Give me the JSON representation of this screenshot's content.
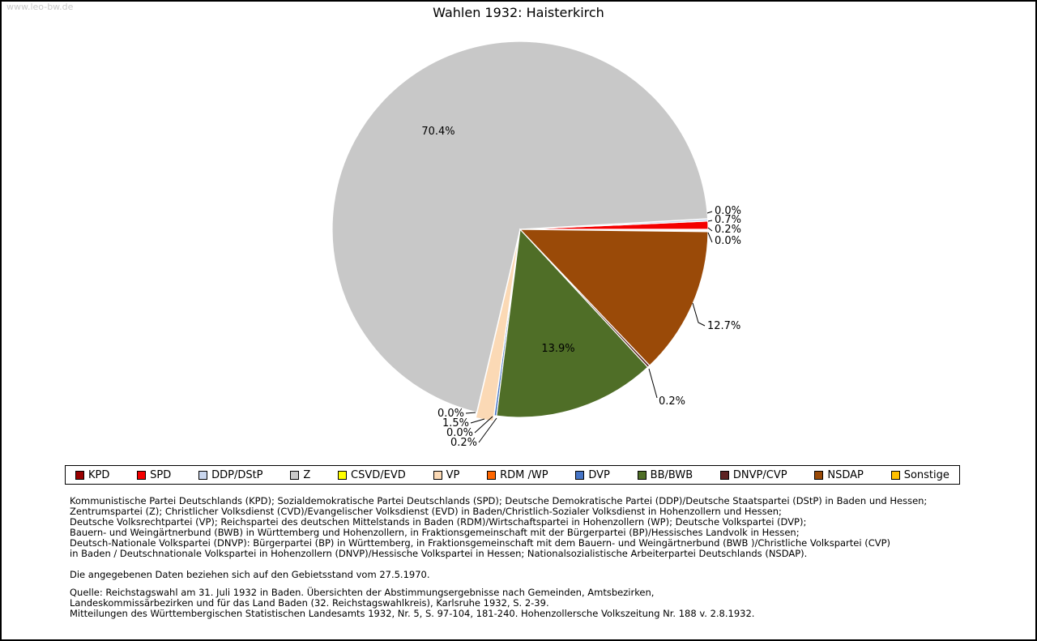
{
  "page": {
    "watermark": "www.leo-bw.de",
    "title": "Wahlen 1932: Haisterkirch"
  },
  "chart_data": {
    "type": "pie",
    "title": "Wahlen 1932: Haisterkirch",
    "unit": "%",
    "direction": "counterclockwise",
    "start_angle_deg": 0,
    "legend_position": "bottom",
    "slices": [
      {
        "label": "KPD",
        "value": 0.0,
        "color": "#990000"
      },
      {
        "label": "SPD",
        "value": 0.7,
        "color": "#f40000"
      },
      {
        "label": "DDP/DStP",
        "value": 0.2,
        "color": "#c9d6ee"
      },
      {
        "label": "Z",
        "value": 70.4,
        "color": "#c8c8c8"
      },
      {
        "label": "CSVD/EVD",
        "value": 0.0,
        "color": "#ffff00"
      },
      {
        "label": "VP",
        "value": 1.5,
        "color": "#fbd9b5"
      },
      {
        "label": "RDM /WP",
        "value": 0.0,
        "color": "#ff6600"
      },
      {
        "label": "DVP",
        "value": 0.2,
        "color": "#4574c6"
      },
      {
        "label": "BB/BWB",
        "value": 13.9,
        "color": "#4f6e27"
      },
      {
        "label": "DNVP/CVP",
        "value": 0.2,
        "color": "#5d2323"
      },
      {
        "label": "NSDAP",
        "value": 12.7,
        "color": "#9a4a08"
      },
      {
        "label": "Sonstige",
        "value": 0.0,
        "color": "#ffc000"
      }
    ]
  },
  "footnotes": {
    "party_description_lines": [
      "Kommunistische Partei Deutschlands (KPD); Sozialdemokratische Partei Deutschlands (SPD); Deutsche Demokratische Partei (DDP)/Deutsche Staatspartei (DStP) in Baden und Hessen;",
      "Zentrumspartei (Z); Christlicher Volksdienst (CVD)/Evangelischer Volksdienst (EVD) in Baden/Christlich-Sozialer Volksdienst in Hohenzollern und Hessen;",
      "Deutsche Volksrechtpartei (VP); Reichspartei des deutschen Mittelstands in Baden (RDM)/Wirtschaftspartei in Hohenzollern (WP); Deutsche Volkspartei (DVP);",
      "Bauern- und Weingärtnerbund (BWB) in Württemberg und Hohenzollern, in Fraktionsgemeinschaft mit der Bürgerpartei (BP)/Hessisches Landvolk in Hessen;",
      "Deutsch-Nationale Volkspartei (DNVP): Bürgerpartei (BP) in Württemberg, in Fraktionsgemeinschaft mit dem Bauern- und Weingärtnerbund (BWB )/Christliche Volkspartei (CVP)",
      "in Baden / Deutschnationale Volkspartei in Hohenzollern (DNVP)/Hessische Volkspartei in Hessen; Nationalsozialistische Arbeiterpartei Deutschlands (NSDAP)."
    ],
    "territorial_note": "Die angegebenen Daten beziehen sich auf den Gebietsstand vom 27.5.1970.",
    "source_lines": [
      "Quelle: Reichstagswahl am 31. Juli 1932 in Baden. Übersichten der Abstimmungsergebnisse nach Gemeinden, Amtsbezirken,",
      "Landeskommissärbezirken und für das Land Baden (32. Reichstagswahlkreis), Karlsruhe 1932, S. 2-39.",
      "Mitteilungen des Württembergischen Statistischen Landesamts 1932, Nr. 5, S. 97-104, 181-240. Hohenzollersche Volkszeitung Nr. 188 v. 2.8.1932."
    ]
  }
}
